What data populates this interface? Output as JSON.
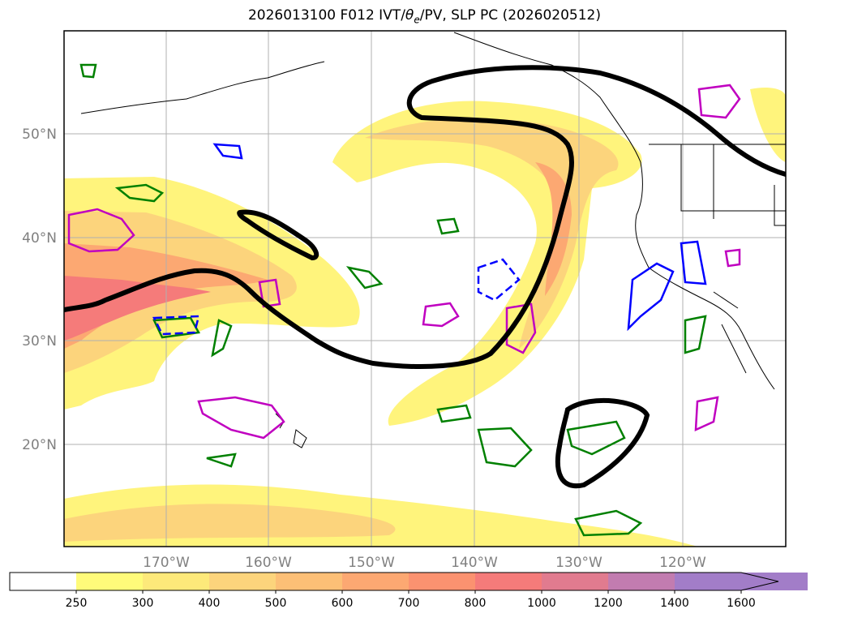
{
  "title": {
    "prefix": "2026013100 F012 IVT/",
    "theta": "θ",
    "theta_sub": "e",
    "suffix": "/PV, SLP PC (2026020512)"
  },
  "map": {
    "lat_labels": [
      "50°N",
      "40°N",
      "30°N",
      "20°N"
    ],
    "lon_labels": [
      "170°W",
      "160°W",
      "150°W",
      "140°W",
      "130°W",
      "120°W"
    ]
  },
  "colorbar": {
    "ticks": [
      "250",
      "300",
      "400",
      "500",
      "600",
      "700",
      "800",
      "1000",
      "1200",
      "1400",
      "1600"
    ],
    "colors": [
      "#ffffff",
      "#fffb7a",
      "#fde97a",
      "#fcd47c",
      "#fcbf76",
      "#fca872",
      "#fb9270",
      "#f57b7a",
      "#e17b8f",
      "#c27cb0",
      "#a27dc8",
      "#a27dc8"
    ],
    "extend": "max"
  }
}
